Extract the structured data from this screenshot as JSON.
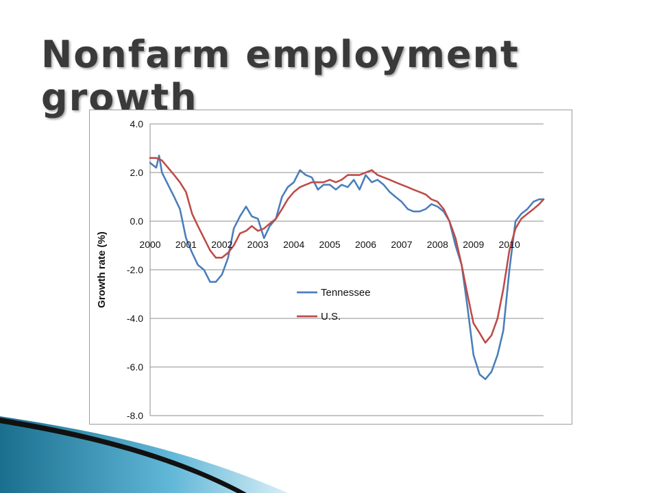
{
  "slide": {
    "title": "Nonfarm employment growth"
  },
  "chart_data": {
    "type": "line",
    "title": "",
    "xlabel": "",
    "ylabel": "Growth rate (%)",
    "xlim": [
      2000,
      2010.95
    ],
    "ylim": [
      -8.0,
      4.0
    ],
    "y_ticks": [
      "4.0",
      "2.0",
      "0.0",
      "-2.0",
      "-4.0",
      "-6.0",
      "-8.0"
    ],
    "y_tick_values": [
      4,
      2,
      0,
      -2,
      -4,
      -6,
      -8
    ],
    "x_ticks": [
      "2000",
      "2001",
      "2002",
      "2003",
      "2004",
      "2005",
      "2006",
      "2007",
      "2008",
      "2009",
      "2010"
    ],
    "x_tick_values": [
      2000,
      2001,
      2002,
      2003,
      2004,
      2005,
      2006,
      2007,
      2008,
      2009,
      2010
    ],
    "grid": "horizontal",
    "legend_position": "center-right",
    "series": [
      {
        "name": "Tennessee",
        "color": "#4a7ebb",
        "x": [
          2000.0,
          2000.17,
          2000.25,
          2000.33,
          2000.5,
          2000.67,
          2000.83,
          2001.0,
          2001.17,
          2001.33,
          2001.5,
          2001.67,
          2001.83,
          2002.0,
          2002.17,
          2002.33,
          2002.5,
          2002.67,
          2002.83,
          2003.0,
          2003.17,
          2003.33,
          2003.5,
          2003.67,
          2003.83,
          2004.0,
          2004.17,
          2004.33,
          2004.5,
          2004.67,
          2004.83,
          2005.0,
          2005.17,
          2005.33,
          2005.5,
          2005.67,
          2005.83,
          2006.0,
          2006.17,
          2006.33,
          2006.5,
          2006.67,
          2006.83,
          2007.0,
          2007.17,
          2007.33,
          2007.5,
          2007.67,
          2007.83,
          2008.0,
          2008.17,
          2008.33,
          2008.5,
          2008.67,
          2008.83,
          2009.0,
          2009.17,
          2009.33,
          2009.5,
          2009.67,
          2009.83,
          2010.0,
          2010.17,
          2010.33,
          2010.5,
          2010.67,
          2010.83,
          2010.95
        ],
        "y": [
          2.4,
          2.2,
          2.7,
          2.0,
          1.5,
          1.0,
          0.5,
          -0.7,
          -1.3,
          -1.8,
          -2.0,
          -2.5,
          -2.5,
          -2.2,
          -1.5,
          -0.3,
          0.2,
          0.6,
          0.2,
          0.1,
          -0.7,
          -0.2,
          0.1,
          1.0,
          1.4,
          1.6,
          2.1,
          1.9,
          1.8,
          1.3,
          1.5,
          1.5,
          1.3,
          1.5,
          1.4,
          1.7,
          1.3,
          1.9,
          1.6,
          1.7,
          1.5,
          1.2,
          1.0,
          0.8,
          0.5,
          0.4,
          0.4,
          0.5,
          0.7,
          0.6,
          0.4,
          0.0,
          -1.0,
          -1.8,
          -3.5,
          -5.5,
          -6.3,
          -6.5,
          -6.2,
          -5.5,
          -4.5,
          -2.0,
          0.0,
          0.3,
          0.5,
          0.8,
          0.9,
          0.9
        ]
      },
      {
        "name": "U.S.",
        "color": "#be4b48",
        "x": [
          2000.0,
          2000.17,
          2000.33,
          2000.5,
          2000.67,
          2000.83,
          2001.0,
          2001.17,
          2001.33,
          2001.5,
          2001.67,
          2001.83,
          2002.0,
          2002.17,
          2002.33,
          2002.5,
          2002.67,
          2002.83,
          2003.0,
          2003.17,
          2003.33,
          2003.5,
          2003.67,
          2003.83,
          2004.0,
          2004.17,
          2004.33,
          2004.5,
          2004.67,
          2004.83,
          2005.0,
          2005.17,
          2005.33,
          2005.5,
          2005.67,
          2005.83,
          2006.0,
          2006.17,
          2006.33,
          2006.5,
          2006.67,
          2006.83,
          2007.0,
          2007.17,
          2007.33,
          2007.5,
          2007.67,
          2007.83,
          2008.0,
          2008.17,
          2008.33,
          2008.5,
          2008.67,
          2008.83,
          2009.0,
          2009.17,
          2009.33,
          2009.5,
          2009.67,
          2009.83,
          2010.0,
          2010.17,
          2010.33,
          2010.5,
          2010.67,
          2010.83,
          2010.95
        ],
        "y": [
          2.6,
          2.6,
          2.5,
          2.2,
          1.9,
          1.6,
          1.2,
          0.3,
          -0.2,
          -0.7,
          -1.2,
          -1.5,
          -1.5,
          -1.3,
          -1.0,
          -0.5,
          -0.4,
          -0.2,
          -0.4,
          -0.3,
          -0.1,
          0.1,
          0.5,
          0.9,
          1.2,
          1.4,
          1.5,
          1.6,
          1.6,
          1.6,
          1.7,
          1.6,
          1.7,
          1.9,
          1.9,
          1.9,
          2.0,
          2.1,
          1.9,
          1.8,
          1.7,
          1.6,
          1.5,
          1.4,
          1.3,
          1.2,
          1.1,
          0.9,
          0.8,
          0.5,
          0.0,
          -0.7,
          -1.8,
          -3.0,
          -4.2,
          -4.6,
          -5.0,
          -4.7,
          -4.0,
          -2.8,
          -1.2,
          -0.3,
          0.1,
          0.3,
          0.5,
          0.7,
          0.9
        ]
      }
    ]
  }
}
